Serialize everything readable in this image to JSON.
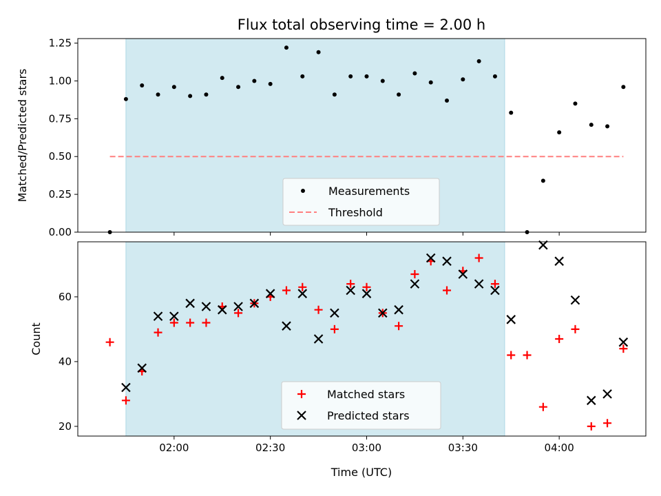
{
  "chart_data": {
    "title": "Flux total observing time = 2.00 h",
    "xlabel": "Time (UTC)",
    "x_ticks": [
      "02:00",
      "02:30",
      "03:00",
      "03:30",
      "04:00"
    ],
    "x_range": [
      "01:30",
      "04:27"
    ],
    "observing_window": [
      "01:45",
      "03:43"
    ],
    "window_color": "#add8e6",
    "panels": [
      {
        "type": "scatter",
        "ylabel": "Matched/Predicted stars",
        "ylim": [
          0,
          1.28
        ],
        "y_ticks": [
          "0.00",
          "0.25",
          "0.50",
          "0.75",
          "1.00",
          "1.25"
        ],
        "legend_position": "bottom-center",
        "series": [
          {
            "name": "Measurements",
            "marker": "dot",
            "color": "#000000",
            "x": [
              "01:40",
              "01:45",
              "01:50",
              "01:55",
              "02:00",
              "02:05",
              "02:10",
              "02:15",
              "02:20",
              "02:25",
              "02:30",
              "02:35",
              "02:40",
              "02:45",
              "02:50",
              "02:55",
              "03:00",
              "03:05",
              "03:10",
              "03:15",
              "03:20",
              "03:25",
              "03:30",
              "03:35",
              "03:40",
              "03:45",
              "03:50",
              "03:55",
              "04:00",
              "04:05",
              "04:10",
              "04:15",
              "04:20"
            ],
            "y": [
              0.0,
              0.88,
              0.97,
              0.91,
              0.96,
              0.9,
              0.91,
              1.02,
              0.96,
              1.0,
              0.98,
              1.22,
              1.03,
              1.19,
              0.91,
              1.03,
              1.03,
              1.0,
              0.91,
              1.05,
              0.99,
              0.87,
              1.01,
              1.13,
              1.03,
              0.79,
              0.0,
              0.34,
              0.66,
              0.85,
              0.71,
              0.7,
              0.96
            ]
          },
          {
            "name": "Threshold",
            "marker": "dashed-line",
            "color": "#ff7f7f",
            "x": [
              "01:40",
              "04:20"
            ],
            "y": [
              0.5,
              0.5
            ]
          }
        ]
      },
      {
        "type": "scatter",
        "ylabel": "Count",
        "ylim": [
          17,
          77
        ],
        "y_ticks": [
          "20",
          "40",
          "60"
        ],
        "legend_position": "bottom-center",
        "series": [
          {
            "name": "Matched stars",
            "marker": "plus",
            "color": "#ff0000",
            "x": [
              "01:40",
              "01:45",
              "01:50",
              "01:55",
              "02:00",
              "02:05",
              "02:10",
              "02:15",
              "02:20",
              "02:25",
              "02:30",
              "02:35",
              "02:40",
              "02:45",
              "02:50",
              "02:55",
              "03:00",
              "03:05",
              "03:10",
              "03:15",
              "03:20",
              "03:25",
              "03:30",
              "03:35",
              "03:40",
              "03:45",
              "03:50",
              "03:55",
              "04:00",
              "04:05",
              "04:10",
              "04:15",
              "04:20"
            ],
            "y": [
              46,
              28,
              37,
              49,
              52,
              52,
              52,
              57,
              55,
              58,
              60,
              62,
              63,
              56,
              50,
              64,
              63,
              55,
              51,
              67,
              71,
              62,
              68,
              72,
              64,
              42,
              42,
              26,
              47,
              50,
              20,
              21,
              44
            ]
          },
          {
            "name": "Predicted stars",
            "marker": "x",
            "color": "#000000",
            "x": [
              "01:45",
              "01:50",
              "01:55",
              "02:00",
              "02:05",
              "02:10",
              "02:15",
              "02:20",
              "02:25",
              "02:30",
              "02:35",
              "02:40",
              "02:45",
              "02:50",
              "02:55",
              "03:00",
              "03:05",
              "03:10",
              "03:15",
              "03:20",
              "03:25",
              "03:30",
              "03:35",
              "03:40",
              "03:45",
              "03:55",
              "04:00",
              "04:05",
              "04:10",
              "04:15",
              "04:20"
            ],
            "y": [
              32,
              38,
              54,
              54,
              58,
              57,
              56,
              57,
              58,
              61,
              51,
              61,
              47,
              55,
              62,
              61,
              55,
              56,
              64,
              72,
              71,
              67,
              64,
              62,
              53,
              76,
              71,
              59,
              28,
              30,
              46
            ]
          }
        ]
      }
    ]
  }
}
